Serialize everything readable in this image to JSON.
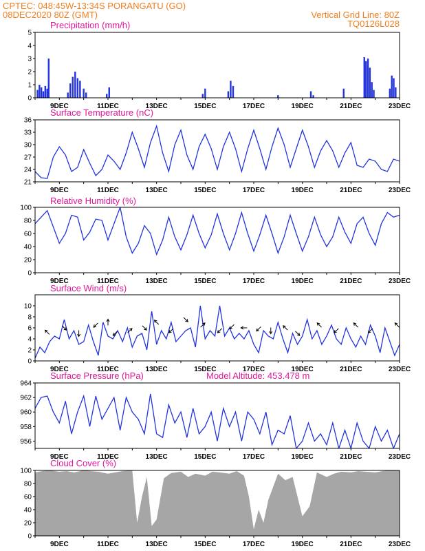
{
  "header": {
    "left_line1": "CPTEC:   048:45W-13:34S   PORANGATU (GO)",
    "left_line2": "08DEC2020 80Z (GMT)",
    "right_line1": "Vertical Grid Line: 80Z",
    "right_line2": "TQ0126L028"
  },
  "colors": {
    "header": "#f07f1f",
    "title": "#e0189a",
    "line": "#2233dd",
    "bar": "#2233dd",
    "cloud": "#a6a6a6"
  },
  "x_labels": [
    "9DEC",
    "11DEC",
    "13DEC",
    "15DEC",
    "17DEC",
    "19DEC",
    "21DEC",
    "23DEC"
  ],
  "chart_data": [
    {
      "type": "bar",
      "title": "Precipitation (mm/h)",
      "ylim": [
        0,
        5
      ],
      "yticks": [
        0,
        1,
        2,
        3,
        4,
        5
      ],
      "x_range_days": [
        8.0,
        23.0
      ],
      "series": [
        {
          "x": [
            8.1,
            8.18,
            8.26,
            8.34,
            8.42,
            8.5,
            8.56,
            9.35,
            9.45,
            9.55,
            9.65,
            9.75,
            9.85,
            10.0,
            10.1,
            10.95,
            11.05,
            14.9,
            15.0,
            15.95,
            16.05,
            16.15,
            18.0,
            19.35,
            19.45,
            20.7,
            21.55,
            21.62,
            21.7,
            21.78,
            21.86,
            21.94,
            22.6,
            22.68,
            22.76,
            22.84
          ],
          "values": [
            0.6,
            1.0,
            0.8,
            0.5,
            0.9,
            0.7,
            3.0,
            0.4,
            1.1,
            1.6,
            2.0,
            1.5,
            1.3,
            0.7,
            0.4,
            0.3,
            0.8,
            0.3,
            0.7,
            0.5,
            1.3,
            0.9,
            0.2,
            0.5,
            0.2,
            0.7,
            3.1,
            2.8,
            3.0,
            2.3,
            1.2,
            0.6,
            0.7,
            1.7,
            1.5,
            0.8
          ]
        }
      ]
    },
    {
      "type": "line",
      "title": "Surface Temperature (nC)",
      "ylim": [
        21,
        36
      ],
      "yticks": [
        21,
        24,
        27,
        30,
        33,
        36
      ],
      "x_range_days": [
        8.0,
        23.0
      ],
      "series": [
        {
          "x": [
            8.0,
            8.25,
            8.5,
            8.75,
            9.0,
            9.25,
            9.5,
            9.75,
            10.0,
            10.25,
            10.5,
            10.75,
            11.0,
            11.25,
            11.5,
            11.75,
            12.0,
            12.25,
            12.5,
            12.75,
            13.0,
            13.25,
            13.5,
            13.75,
            14.0,
            14.25,
            14.5,
            14.75,
            15.0,
            15.25,
            15.5,
            15.75,
            16.0,
            16.25,
            16.5,
            16.75,
            17.0,
            17.25,
            17.5,
            17.75,
            18.0,
            18.25,
            18.5,
            18.75,
            19.0,
            19.25,
            19.5,
            19.75,
            20.0,
            20.25,
            20.5,
            20.75,
            21.0,
            21.25,
            21.5,
            21.75,
            22.0,
            22.25,
            22.5,
            22.75,
            23.0
          ],
          "values": [
            23.5,
            22.0,
            21.8,
            27.0,
            29.5,
            27.5,
            23.5,
            24.5,
            28.8,
            25.5,
            22.5,
            24.0,
            27.5,
            26.0,
            24.0,
            28.0,
            33.0,
            29.0,
            24.5,
            30.5,
            34.5,
            28.0,
            23.5,
            30.0,
            33.5,
            27.5,
            24.0,
            29.5,
            32.5,
            29.0,
            24.0,
            29.5,
            33.0,
            29.0,
            23.5,
            29.0,
            33.5,
            29.0,
            24.0,
            29.5,
            34.0,
            30.0,
            24.5,
            29.0,
            33.5,
            29.5,
            24.5,
            28.5,
            31.0,
            28.5,
            24.5,
            28.0,
            30.5,
            25.0,
            24.5,
            26.5,
            26.0,
            24.0,
            23.5,
            26.5,
            26.0
          ]
        }
      ]
    },
    {
      "type": "line",
      "title": "Relative Humidity (%)",
      "ylim": [
        0,
        100
      ],
      "yticks": [
        0,
        20,
        40,
        60,
        80,
        100
      ],
      "x_range_days": [
        8.0,
        23.0
      ],
      "series": [
        {
          "x": [
            8.0,
            8.25,
            8.5,
            8.75,
            9.0,
            9.25,
            9.5,
            9.75,
            10.0,
            10.25,
            10.5,
            10.75,
            11.0,
            11.25,
            11.5,
            11.75,
            12.0,
            12.25,
            12.5,
            12.75,
            13.0,
            13.25,
            13.5,
            13.75,
            14.0,
            14.25,
            14.5,
            14.75,
            15.0,
            15.25,
            15.5,
            15.75,
            16.0,
            16.25,
            16.5,
            16.75,
            17.0,
            17.25,
            17.5,
            17.75,
            18.0,
            18.25,
            18.5,
            18.75,
            19.0,
            19.25,
            19.5,
            19.75,
            20.0,
            20.25,
            20.5,
            20.75,
            21.0,
            21.25,
            21.5,
            21.75,
            22.0,
            22.25,
            22.5,
            22.75,
            23.0
          ],
          "values": [
            75,
            85,
            95,
            70,
            45,
            60,
            88,
            85,
            50,
            62,
            82,
            80,
            50,
            75,
            100,
            55,
            30,
            45,
            72,
            60,
            28,
            50,
            85,
            55,
            35,
            58,
            88,
            60,
            38,
            58,
            90,
            60,
            35,
            60,
            92,
            60,
            33,
            58,
            88,
            60,
            30,
            55,
            88,
            60,
            33,
            55,
            85,
            58,
            40,
            55,
            85,
            62,
            45,
            75,
            85,
            60,
            42,
            75,
            92,
            85,
            88
          ]
        }
      ]
    },
    {
      "type": "line",
      "title": "Surface Wind (m/s)",
      "ylim": [
        0,
        12
      ],
      "yticks": [
        0,
        2,
        4,
        6,
        8,
        10
      ],
      "x_range_days": [
        8.0,
        23.0
      ],
      "series": [
        {
          "x": [
            8.0,
            8.2,
            8.4,
            8.6,
            8.8,
            9.0,
            9.2,
            9.4,
            9.6,
            9.8,
            10.0,
            10.2,
            10.4,
            10.6,
            10.8,
            11.0,
            11.2,
            11.4,
            11.6,
            11.8,
            12.0,
            12.2,
            12.4,
            12.6,
            12.8,
            13.0,
            13.2,
            13.4,
            13.6,
            13.8,
            14.0,
            14.2,
            14.4,
            14.6,
            14.8,
            15.0,
            15.2,
            15.4,
            15.6,
            15.8,
            16.0,
            16.2,
            16.4,
            16.6,
            16.8,
            17.0,
            17.2,
            17.4,
            17.6,
            17.8,
            18.0,
            18.2,
            18.4,
            18.6,
            18.8,
            19.0,
            19.2,
            19.4,
            19.6,
            19.8,
            20.0,
            20.2,
            20.4,
            20.6,
            20.8,
            21.0,
            21.2,
            21.4,
            21.6,
            21.8,
            22.0,
            22.2,
            22.4,
            22.6,
            22.8,
            23.0
          ],
          "values": [
            0.5,
            2.5,
            1.5,
            3.5,
            4.5,
            4.0,
            7.5,
            4.0,
            5.5,
            3.0,
            3.5,
            6.5,
            3.5,
            1.0,
            7.0,
            4.5,
            4.0,
            5.5,
            3.5,
            6.0,
            2.5,
            4.5,
            5.0,
            2.0,
            9.0,
            3.0,
            5.5,
            4.0,
            7.0,
            3.5,
            4.5,
            5.5,
            6.0,
            2.5,
            10.0,
            4.0,
            5.5,
            4.5,
            10.0,
            4.5,
            6.0,
            4.0,
            5.0,
            4.0,
            5.5,
            3.0,
            1.5,
            5.5,
            4.5,
            4.0,
            7.0,
            4.0,
            1.5,
            5.0,
            3.0,
            4.5,
            7.5,
            4.0,
            5.5,
            3.0,
            4.5,
            6.5,
            4.0,
            3.0,
            6.0,
            4.0,
            2.5,
            4.5,
            3.0,
            6.5,
            4.5,
            1.5,
            6.0,
            3.5,
            1.0,
            3.0
          ]
        }
      ],
      "vectors": [
        {
          "x": 8.5,
          "y": 5.2,
          "dir": "nw"
        },
        {
          "x": 9.2,
          "y": 6.0,
          "dir": "se"
        },
        {
          "x": 9.8,
          "y": 5.0,
          "dir": "s"
        },
        {
          "x": 10.5,
          "y": 6.5,
          "dir": "sw"
        },
        {
          "x": 11.0,
          "y": 7.0,
          "dir": "n"
        },
        {
          "x": 11.3,
          "y": 5.0,
          "dir": "sw"
        },
        {
          "x": 11.9,
          "y": 5.5,
          "dir": "ne"
        },
        {
          "x": 12.5,
          "y": 6.0,
          "dir": "se"
        },
        {
          "x": 13.0,
          "y": 7.0,
          "dir": "nw"
        },
        {
          "x": 13.6,
          "y": 5.5,
          "dir": "sw"
        },
        {
          "x": 14.2,
          "y": 7.5,
          "dir": "se"
        },
        {
          "x": 14.9,
          "y": 6.5,
          "dir": "ne"
        },
        {
          "x": 15.6,
          "y": 5.5,
          "dir": "sw"
        },
        {
          "x": 16.1,
          "y": 6.2,
          "dir": "sw"
        },
        {
          "x": 16.6,
          "y": 6.0,
          "dir": "w"
        },
        {
          "x": 17.2,
          "y": 5.8,
          "dir": "sw"
        },
        {
          "x": 17.7,
          "y": 5.5,
          "dir": "s"
        },
        {
          "x": 18.3,
          "y": 6.0,
          "dir": "nw"
        },
        {
          "x": 18.8,
          "y": 5.0,
          "dir": "se"
        },
        {
          "x": 19.7,
          "y": 6.5,
          "dir": "nw"
        },
        {
          "x": 20.4,
          "y": 5.5,
          "dir": "sw"
        },
        {
          "x": 21.2,
          "y": 6.5,
          "dir": "nw"
        },
        {
          "x": 21.8,
          "y": 5.5,
          "dir": "sw"
        },
        {
          "x": 22.9,
          "y": 6.5,
          "dir": "nw"
        }
      ]
    },
    {
      "type": "line",
      "title": "Surface Pressure (hPa)",
      "subtitle": "Model Altitude: 453.478 m",
      "ylim": [
        955,
        964
      ],
      "yticks": [
        956,
        958,
        960,
        962,
        964
      ],
      "x_range_days": [
        8.0,
        23.0
      ],
      "series": [
        {
          "x": [
            8.0,
            8.25,
            8.5,
            8.75,
            9.0,
            9.25,
            9.5,
            9.75,
            10.0,
            10.25,
            10.5,
            10.75,
            11.0,
            11.25,
            11.5,
            11.75,
            12.0,
            12.25,
            12.5,
            12.75,
            13.0,
            13.25,
            13.5,
            13.75,
            14.0,
            14.25,
            14.5,
            14.75,
            15.0,
            15.25,
            15.5,
            15.75,
            16.0,
            16.25,
            16.5,
            16.75,
            17.0,
            17.25,
            17.5,
            17.75,
            18.0,
            18.25,
            18.5,
            18.75,
            19.0,
            19.25,
            19.5,
            19.75,
            20.0,
            20.25,
            20.5,
            20.75,
            21.0,
            21.25,
            21.5,
            21.75,
            22.0,
            22.25,
            22.5,
            22.75,
            23.0
          ],
          "values": [
            960.5,
            962.0,
            962.2,
            960.0,
            958.5,
            961.5,
            957.0,
            960.0,
            962.2,
            958.0,
            962.2,
            959.0,
            960.5,
            962.0,
            957.5,
            962.0,
            960.0,
            959.0,
            957.0,
            962.5,
            957.0,
            956.5,
            961.0,
            958.5,
            960.0,
            956.5,
            960.5,
            957.0,
            958.0,
            960.0,
            956.0,
            960.5,
            958.0,
            960.0,
            956.0,
            960.0,
            959.0,
            957.0,
            960.0,
            955.5,
            957.5,
            957.0,
            959.5,
            955.0,
            956.0,
            958.5,
            956.0,
            957.0,
            955.5,
            958.5,
            955.0,
            957.5,
            955.0,
            958.5,
            956.0,
            955.0,
            958.0,
            956.0,
            957.5,
            955.0,
            957.0
          ]
        }
      ]
    },
    {
      "type": "area",
      "title": "Cloud Cover (%)",
      "ylim": [
        0,
        100
      ],
      "yticks": [
        0,
        20,
        40,
        60,
        80,
        100
      ],
      "x_range_days": [
        8.0,
        23.0
      ],
      "series": [
        {
          "x": [
            8.0,
            8.3,
            8.6,
            9.0,
            9.3,
            9.6,
            10.0,
            10.3,
            10.6,
            11.0,
            11.3,
            11.6,
            12.0,
            12.2,
            12.4,
            12.6,
            12.8,
            13.0,
            13.3,
            13.6,
            14.0,
            14.3,
            14.6,
            15.0,
            15.3,
            15.6,
            16.0,
            16.3,
            16.6,
            16.8,
            17.0,
            17.2,
            17.4,
            17.6,
            18.0,
            18.3,
            18.6,
            19.0,
            19.3,
            19.6,
            20.0,
            20.3,
            20.6,
            21.0,
            21.3,
            21.6,
            22.0,
            22.3,
            22.6,
            23.0
          ],
          "values": [
            97,
            99,
            100,
            98,
            99,
            97,
            100,
            99,
            98,
            95,
            97,
            99,
            100,
            20,
            60,
            90,
            15,
            25,
            88,
            96,
            98,
            90,
            95,
            92,
            98,
            97,
            95,
            99,
            92,
            60,
            10,
            40,
            20,
            55,
            95,
            85,
            90,
            30,
            45,
            97,
            90,
            95,
            98,
            97,
            99,
            98,
            97,
            99,
            100,
            100
          ]
        }
      ]
    }
  ]
}
